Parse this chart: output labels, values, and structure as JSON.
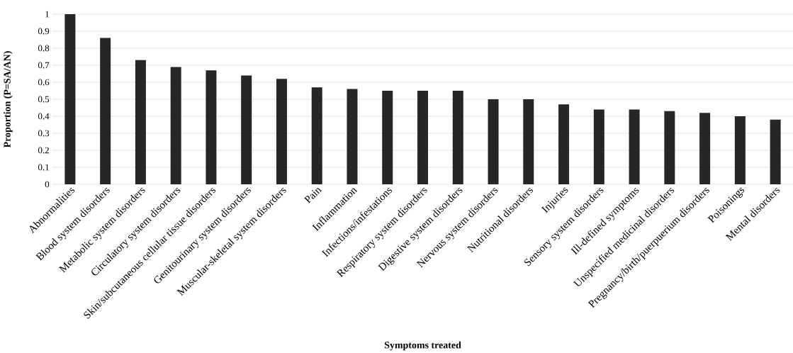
{
  "chart_data": {
    "type": "bar",
    "xlabel": "Symptoms treated",
    "ylabel": "Proportion (P=SA/AN)",
    "categories": [
      "Abnormalities",
      "Blood system disorders",
      "Metabolic system disorders",
      "Circulatory system disorders",
      "Skin/subcutaneous cellular tissue disorders",
      "Genitourinary system disorders",
      "Muscular-skeletal system disorders",
      "Pain",
      "Inflammation",
      "Infections/infestations",
      "Respiratory system disorders",
      "Digestive system disorders",
      "Nervous system disorders",
      "Nutritional disorders",
      "Injuries",
      "Sensory system disorders",
      "Ill-defined symptoms",
      "Unspecified medicinal disorders",
      "Pregnancy/birth/puerpuerium disorders",
      "Poisonings",
      "Mental disorders"
    ],
    "values": [
      1.0,
      0.86,
      0.73,
      0.69,
      0.67,
      0.64,
      0.62,
      0.57,
      0.56,
      0.55,
      0.55,
      0.55,
      0.5,
      0.5,
      0.47,
      0.44,
      0.44,
      0.43,
      0.42,
      0.4,
      0.38
    ],
    "color": "#262626",
    "ylim": [
      0,
      1
    ],
    "yticks": [
      0,
      0.1,
      0.2,
      0.3,
      0.4,
      0.5,
      0.6,
      0.7,
      0.8,
      0.9,
      1
    ],
    "grid": "y"
  }
}
